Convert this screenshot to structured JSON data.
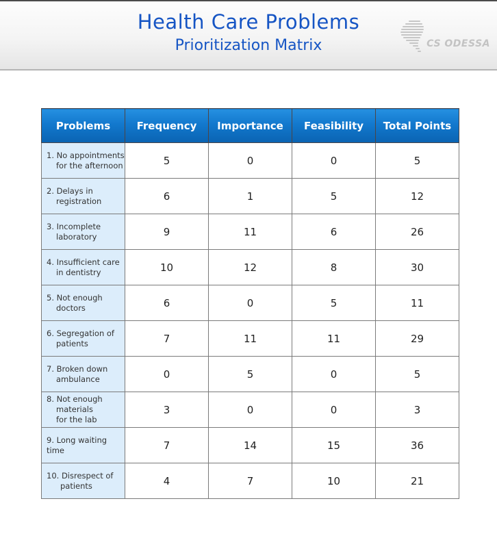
{
  "header": {
    "title": "Health Care Problems",
    "subtitle": "Prioritization Matrix"
  },
  "logo": {
    "text": "CS ODESSA",
    "icon": "swirl-icon"
  },
  "colors": {
    "title_blue": "#1655c4",
    "header_top": "#2590e1",
    "header_mid": "#1278cd",
    "header_bottom": "#0a63b2",
    "problem_bg": "#dcedfb",
    "logo_gray": "#c3c3c3"
  },
  "table": {
    "columns": [
      "Problems",
      "Frequency",
      "Importance",
      "Feasibility",
      "Total Points"
    ],
    "rows": [
      {
        "problem_lines": [
          "1. No appointments",
          "for the afternoon"
        ],
        "indent": 14,
        "frequency": "5",
        "importance": "0",
        "feasibility": "0",
        "total_points": "5"
      },
      {
        "problem_lines": [
          "2. Delays in",
          "registration"
        ],
        "indent": 14,
        "frequency": "6",
        "importance": "1",
        "feasibility": "5",
        "total_points": "12"
      },
      {
        "problem_lines": [
          "3. Incomplete",
          "laboratory"
        ],
        "indent": 14,
        "frequency": "9",
        "importance": "11",
        "feasibility": "6",
        "total_points": "26"
      },
      {
        "problem_lines": [
          "4. Insufficient care",
          "in dentistry"
        ],
        "indent": 14,
        "frequency": "10",
        "importance": "12",
        "feasibility": "8",
        "total_points": "30"
      },
      {
        "problem_lines": [
          "5. Not enough",
          "doctors"
        ],
        "indent": 14,
        "frequency": "6",
        "importance": "0",
        "feasibility": "5",
        "total_points": "11"
      },
      {
        "problem_lines": [
          "6. Segregation of",
          "patients"
        ],
        "indent": 14,
        "frequency": "7",
        "importance": "11",
        "feasibility": "11",
        "total_points": "29"
      },
      {
        "problem_lines": [
          "7. Broken down",
          "ambulance"
        ],
        "indent": 14,
        "frequency": "0",
        "importance": "5",
        "feasibility": "0",
        "total_points": "5"
      },
      {
        "problem_lines": [
          "8. Not enough",
          "materials",
          "for the lab"
        ],
        "indent": 14,
        "frequency": "3",
        "importance": "0",
        "feasibility": "0",
        "total_points": "3"
      },
      {
        "problem_lines": [
          "9. Long waiting",
          "time"
        ],
        "indent": 0,
        "frequency": "7",
        "importance": "14",
        "feasibility": "15",
        "total_points": "36"
      },
      {
        "problem_lines": [
          "10. Disrespect of",
          "patients"
        ],
        "indent": 20,
        "frequency": "4",
        "importance": "7",
        "feasibility": "10",
        "total_points": "21"
      }
    ]
  }
}
